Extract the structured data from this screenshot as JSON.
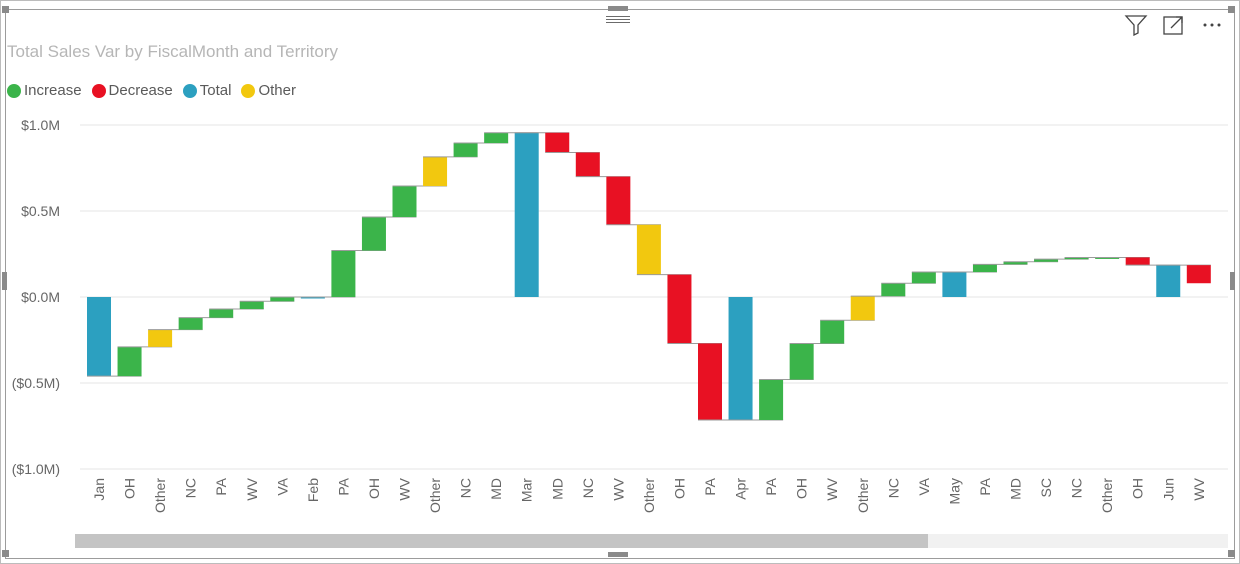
{
  "header": {
    "icons": [
      "filter-icon",
      "focus-mode-icon",
      "more-options-icon"
    ],
    "more_glyph": "···"
  },
  "chart_data": {
    "type": "waterfall",
    "title": "Total Sales Var by FiscalMonth and Territory",
    "legend": [
      {
        "name": "Increase",
        "color": "#3bb44a"
      },
      {
        "name": "Decrease",
        "color": "#e81123"
      },
      {
        "name": "Total",
        "color": "#2ca0c0"
      },
      {
        "name": "Other",
        "color": "#f2c80f"
      }
    ],
    "legend_position": "top-left",
    "ylim": [
      -1.0,
      1.0
    ],
    "y_ticks": [
      {
        "value": 1.0,
        "label": "$1.0M"
      },
      {
        "value": 0.5,
        "label": "$0.5M"
      },
      {
        "value": 0.0,
        "label": "$0.0M"
      },
      {
        "value": -0.5,
        "label": "($0.5M)"
      },
      {
        "value": -1.0,
        "label": "($1.0M)"
      }
    ],
    "grid": true,
    "units": "$M",
    "bars": [
      {
        "label": "Jan",
        "kind": "Total",
        "start": 0,
        "end": -0.46
      },
      {
        "label": "OH",
        "kind": "Increase",
        "start": -0.46,
        "end": -0.29
      },
      {
        "label": "Other",
        "kind": "Other",
        "start": -0.29,
        "end": -0.19
      },
      {
        "label": "NC",
        "kind": "Increase",
        "start": -0.19,
        "end": -0.12
      },
      {
        "label": "PA",
        "kind": "Increase",
        "start": -0.12,
        "end": -0.07
      },
      {
        "label": "WV",
        "kind": "Increase",
        "start": -0.07,
        "end": -0.025
      },
      {
        "label": "VA",
        "kind": "Increase",
        "start": -0.025,
        "end": 0.0
      },
      {
        "label": "Feb",
        "kind": "Total",
        "start": 0,
        "end": 0.0
      },
      {
        "label": "PA",
        "kind": "Increase",
        "start": 0.0,
        "end": 0.27
      },
      {
        "label": "OH",
        "kind": "Increase",
        "start": 0.27,
        "end": 0.465
      },
      {
        "label": "WV",
        "kind": "Increase",
        "start": 0.465,
        "end": 0.645
      },
      {
        "label": "Other",
        "kind": "Other",
        "start": 0.645,
        "end": 0.815
      },
      {
        "label": "NC",
        "kind": "Increase",
        "start": 0.815,
        "end": 0.895
      },
      {
        "label": "MD",
        "kind": "Increase",
        "start": 0.895,
        "end": 0.955
      },
      {
        "label": "Mar",
        "kind": "Total",
        "start": 0,
        "end": 0.955
      },
      {
        "label": "MD",
        "kind": "Decrease",
        "start": 0.955,
        "end": 0.84
      },
      {
        "label": "NC",
        "kind": "Decrease",
        "start": 0.84,
        "end": 0.7
      },
      {
        "label": "WV",
        "kind": "Decrease",
        "start": 0.7,
        "end": 0.42
      },
      {
        "label": "Other",
        "kind": "Other",
        "start": 0.42,
        "end": 0.13
      },
      {
        "label": "OH",
        "kind": "Decrease",
        "start": 0.13,
        "end": -0.27
      },
      {
        "label": "PA",
        "kind": "Decrease",
        "start": -0.27,
        "end": -0.715
      },
      {
        "label": "Apr",
        "kind": "Total",
        "start": 0,
        "end": -0.715
      },
      {
        "label": "PA",
        "kind": "Increase",
        "start": -0.715,
        "end": -0.48
      },
      {
        "label": "OH",
        "kind": "Increase",
        "start": -0.48,
        "end": -0.27
      },
      {
        "label": "WV",
        "kind": "Increase",
        "start": -0.27,
        "end": -0.135
      },
      {
        "label": "Other",
        "kind": "Other",
        "start": -0.135,
        "end": 0.005
      },
      {
        "label": "NC",
        "kind": "Increase",
        "start": 0.005,
        "end": 0.08
      },
      {
        "label": "VA",
        "kind": "Increase",
        "start": 0.08,
        "end": 0.145
      },
      {
        "label": "May",
        "kind": "Total",
        "start": 0,
        "end": 0.145
      },
      {
        "label": "PA",
        "kind": "Increase",
        "start": 0.145,
        "end": 0.19
      },
      {
        "label": "MD",
        "kind": "Increase",
        "start": 0.19,
        "end": 0.205
      },
      {
        "label": "SC",
        "kind": "Increase",
        "start": 0.205,
        "end": 0.22
      },
      {
        "label": "NC",
        "kind": "Increase",
        "start": 0.22,
        "end": 0.23
      },
      {
        "label": "Other",
        "kind": "Increase",
        "start": 0.23,
        "end": 0.23
      },
      {
        "label": "OH",
        "kind": "Decrease",
        "start": 0.23,
        "end": 0.185
      },
      {
        "label": "Jun",
        "kind": "Total",
        "start": 0,
        "end": 0.185
      },
      {
        "label": "WV",
        "kind": "Decrease",
        "start": 0.185,
        "end": 0.08
      }
    ]
  },
  "scrollbar": {
    "visible_fraction": 0.74
  }
}
